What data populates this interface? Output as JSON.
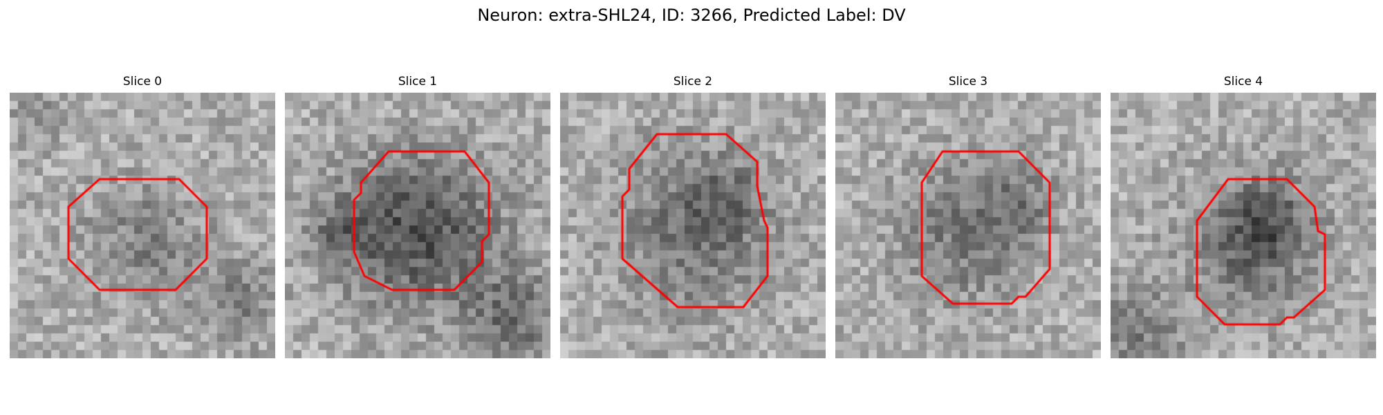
{
  "figure": {
    "title": "Neuron: extra-SHL24, ID: 3266, Predicted Label: DV"
  },
  "colors": {
    "contour": "#ff0000",
    "background": "#ffffff",
    "image_colormap": "grayscale"
  },
  "panels": [
    {
      "title": "Slice 0",
      "content": "grayscale microscopy patch with red octagonal contour",
      "contour_shape": "octagon",
      "cell_darkness": "light"
    },
    {
      "title": "Slice 1",
      "content": "grayscale microscopy patch with red octagonal contour",
      "contour_shape": "octagon",
      "cell_darkness": "dark"
    },
    {
      "title": "Slice 2",
      "content": "grayscale microscopy patch with red irregular polygon contour",
      "contour_shape": "irregular-polygon",
      "cell_darkness": "medium"
    },
    {
      "title": "Slice 3",
      "content": "grayscale microscopy patch with red octagonal contour",
      "contour_shape": "octagon",
      "cell_darkness": "medium"
    },
    {
      "title": "Slice 4",
      "content": "grayscale microscopy patch with red irregular polygon contour",
      "contour_shape": "irregular-polygon",
      "cell_darkness": "dark-core"
    }
  ]
}
